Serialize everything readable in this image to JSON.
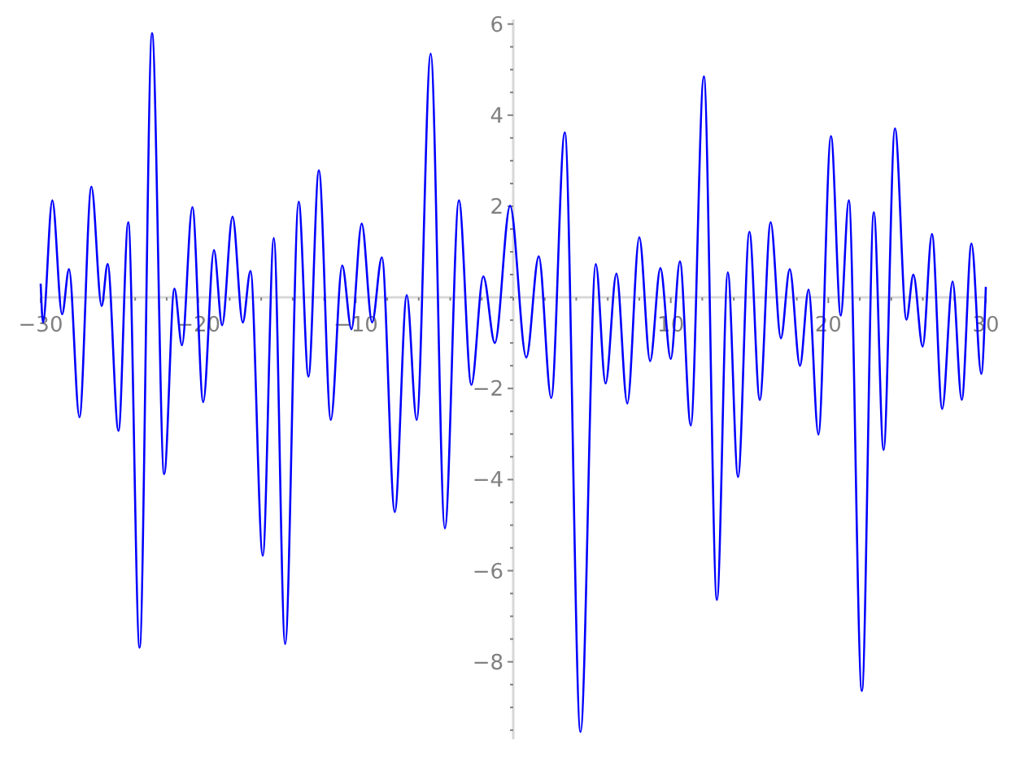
{
  "chart_data": {
    "type": "line",
    "xlim": [
      -30,
      30
    ],
    "ylim": [
      -9.7,
      6.1
    ],
    "xticks": [
      -30,
      {
        "value": -28,
        "label": null
      },
      {
        "value": -26,
        "label": null
      },
      {
        "value": -24,
        "label": null
      },
      {
        "value": -22,
        "label": null
      },
      -20,
      {
        "value": -18,
        "label": null
      },
      {
        "value": -16,
        "label": null
      },
      {
        "value": -14,
        "label": null
      },
      {
        "value": -12,
        "label": null
      },
      -10,
      {
        "value": -8,
        "label": null
      },
      {
        "value": -6,
        "label": null
      },
      {
        "value": -4,
        "label": null
      },
      {
        "value": -2,
        "label": null
      },
      {
        "value": 0,
        "label": null
      },
      {
        "value": 2,
        "label": null
      },
      {
        "value": 4,
        "label": null
      },
      {
        "value": 6,
        "label": null
      },
      {
        "value": 8,
        "label": null
      },
      10,
      {
        "value": 12,
        "label": null
      },
      {
        "value": 14,
        "label": null
      },
      {
        "value": 16,
        "label": null
      },
      {
        "value": 18,
        "label": null
      },
      20,
      {
        "value": 22,
        "label": null
      },
      {
        "value": 24,
        "label": null
      },
      {
        "value": 26,
        "label": null
      },
      {
        "value": 28,
        "label": null
      },
      30
    ],
    "yticks": [
      {
        "value": -9.5,
        "label": null
      },
      {
        "value": -9,
        "label": null
      },
      {
        "value": -8.5,
        "label": null
      },
      {
        "value": -8,
        "label": "−8"
      },
      {
        "value": -7.5,
        "label": null
      },
      {
        "value": -7,
        "label": null
      },
      {
        "value": -6.5,
        "label": null
      },
      {
        "value": -6,
        "label": "−6"
      },
      {
        "value": -5.5,
        "label": null
      },
      {
        "value": -5,
        "label": null
      },
      {
        "value": -4.5,
        "label": null
      },
      {
        "value": -4,
        "label": "−4"
      },
      {
        "value": -3.5,
        "label": null
      },
      {
        "value": -3,
        "label": null
      },
      {
        "value": -2.5,
        "label": null
      },
      {
        "value": -2,
        "label": "−2"
      },
      {
        "value": -1.5,
        "label": null
      },
      {
        "value": -1,
        "label": null
      },
      {
        "value": -0.5,
        "label": null
      },
      {
        "value": 0,
        "label": null
      },
      {
        "value": 0.5,
        "label": null
      },
      {
        "value": 1,
        "label": null
      },
      {
        "value": 1.5,
        "label": null
      },
      2,
      {
        "value": 2.5,
        "label": null
      },
      {
        "value": 3,
        "label": null
      },
      {
        "value": 3.5,
        "label": null
      },
      4,
      {
        "value": 4.5,
        "label": null
      },
      {
        "value": 5,
        "label": null
      },
      {
        "value": 5.5,
        "label": null
      },
      6
    ],
    "marker": "none",
    "line_style": "solid",
    "grid": false,
    "x": [
      -30,
      -29.85,
      -29.26,
      -28.64,
      -28.2,
      -27.54,
      -26.78,
      -26.13,
      -25.75,
      -25.06,
      -24.44,
      -23.72,
      -22.93,
      -22.16,
      -21.51,
      -21.03,
      -20.37,
      -19.68,
      -19.0,
      -18.48,
      -17.82,
      -17.17,
      -16.68,
      -15.9,
      -15.2,
      -14.48,
      -13.62,
      -13.0,
      -12.34,
      -11.58,
      -10.86,
      -10.27,
      -9.62,
      -8.96,
      -8.34,
      -7.52,
      -6.76,
      -6.13,
      -5.24,
      -4.34,
      -3.45,
      -2.66,
      -1.9,
      -1.17,
      -0.2,
      0.83,
      1.62,
      2.41,
      3.27,
      4.27,
      5.24,
      5.86,
      6.55,
      7.24,
      8.0,
      8.69,
      9.34,
      10.0,
      10.58,
      11.27,
      12.1,
      12.93,
      13.62,
      14.27,
      14.99,
      15.65,
      16.34,
      16.99,
      17.55,
      18.2,
      18.75,
      19.37,
      20.17,
      20.79,
      21.3,
      22.13,
      22.89,
      23.51,
      24.23,
      24.96,
      25.4,
      25.99,
      26.58,
      27.23,
      27.89,
      28.47,
      29.09,
      29.71,
      30
    ],
    "series": [
      {
        "color": "#0000ff",
        "values": [
          0.3,
          -0.55,
          2.13,
          -0.37,
          0.62,
          -2.63,
          2.43,
          -0.19,
          0.73,
          -2.93,
          1.65,
          -7.69,
          5.8,
          -3.88,
          0.19,
          -1.05,
          1.98,
          -2.3,
          1.04,
          -0.61,
          1.77,
          -0.55,
          0.58,
          -5.67,
          1.3,
          -7.61,
          2.1,
          -1.74,
          2.79,
          -2.69,
          0.7,
          -0.7,
          1.62,
          -0.55,
          0.88,
          -4.71,
          0.05,
          -2.69,
          5.35,
          -5.07,
          2.13,
          -1.92,
          0.46,
          -1.0,
          2.01,
          -1.32,
          0.9,
          -2.21,
          3.62,
          -9.54,
          0.73,
          -1.89,
          0.52,
          -2.33,
          1.32,
          -1.4,
          0.64,
          -1.35,
          0.79,
          -2.81,
          4.85,
          -6.64,
          0.55,
          -3.94,
          1.44,
          -2.25,
          1.65,
          -0.9,
          0.62,
          -1.5,
          0.17,
          -3.01,
          3.54,
          -0.4,
          2.13,
          -8.64,
          1.87,
          -3.35,
          3.71,
          -0.49,
          0.5,
          -1.08,
          1.39,
          -2.45,
          0.35,
          -2.25,
          1.18,
          -1.68,
          0.23
        ]
      }
    ]
  }
}
